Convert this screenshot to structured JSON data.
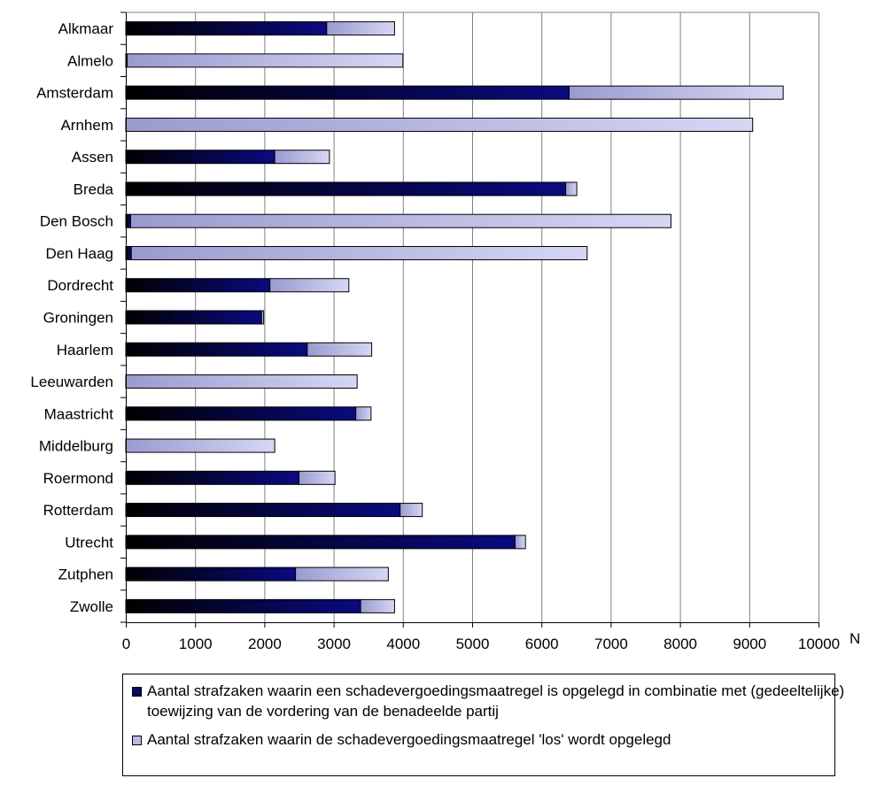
{
  "chart_data": {
    "type": "bar",
    "orientation": "horizontal",
    "stacked": true,
    "categories": [
      "Alkmaar",
      "Almelo",
      "Amsterdam",
      "Arnhem",
      "Assen",
      "Breda",
      "Den Bosch",
      "Den Haag",
      "Dordrecht",
      "Groningen",
      "Haarlem",
      "Leeuwarden",
      "Maastricht",
      "Middelburg",
      "Roermond",
      "Rotterdam",
      "Utrecht",
      "Zutphen",
      "Zwolle"
    ],
    "series": [
      {
        "name": "Aantal strafzaken waarin een schadevergoedingsmaatregel is opgelegd in combinatie met (gedeeltelijke) toewijzing van de vordering van de benadeelde partij",
        "color": "#0a0a5e",
        "values": [
          2900,
          20,
          6400,
          0,
          2150,
          6350,
          70,
          80,
          2080,
          1960,
          2620,
          0,
          3320,
          0,
          2500,
          3960,
          5620,
          2450,
          3390
        ]
      },
      {
        "name": "Aantal strafzaken waarin de schadevergoedingsmaatregel 'los' wordt opgelegd",
        "color": "#b8b8e6",
        "values": [
          980,
          3980,
          3090,
          9050,
          790,
          160,
          7800,
          6580,
          1140,
          30,
          930,
          3340,
          220,
          2150,
          520,
          320,
          150,
          1340,
          490
        ]
      }
    ],
    "xlim": [
      0,
      10000
    ],
    "xticks": [
      0,
      1000,
      2000,
      3000,
      4000,
      5000,
      6000,
      7000,
      8000,
      9000,
      10000
    ],
    "xticks_labels": [
      "0",
      "1000",
      "2000",
      "3000",
      "4000",
      "5000",
      "6000",
      "7000",
      "8000",
      "9000",
      "10000"
    ],
    "xunit": "N",
    "grid": "vertical",
    "legend_position": "bottom"
  }
}
